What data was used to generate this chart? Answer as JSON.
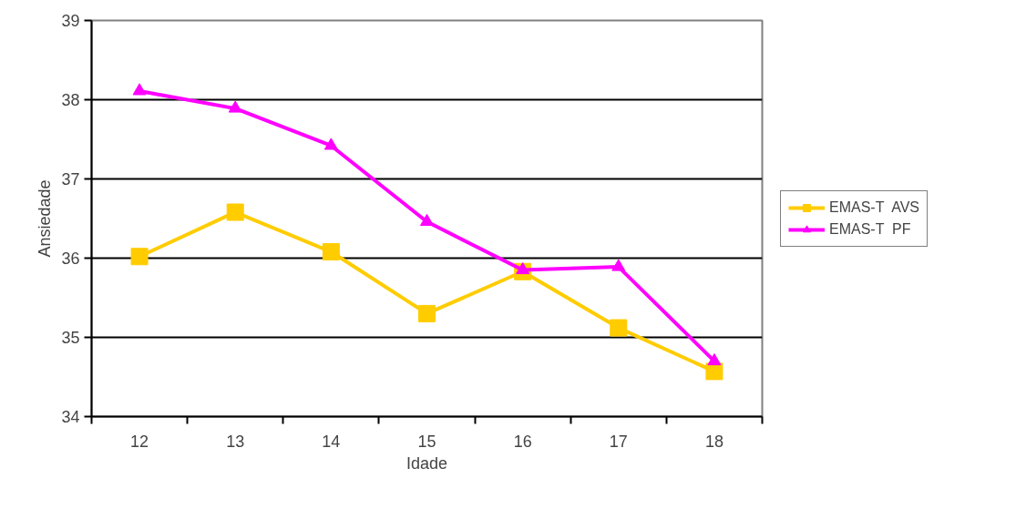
{
  "chart_data": {
    "type": "line",
    "xlabel": "Idade",
    "ylabel": "Ansiedade",
    "categories": [
      "12",
      "13",
      "14",
      "15",
      "16",
      "17",
      "18"
    ],
    "series": [
      {
        "name": "EMAS-T  AVS",
        "color": "#ffcc00",
        "marker": "square",
        "values": [
          36.02,
          36.58,
          36.08,
          35.3,
          35.83,
          35.12,
          34.57
        ]
      },
      {
        "name": "EMAS-T  PF",
        "color": "#ff00ff",
        "marker": "triangle",
        "values": [
          38.11,
          37.89,
          37.42,
          36.46,
          35.85,
          35.89,
          34.7
        ]
      }
    ],
    "ylim": [
      34,
      39
    ],
    "yticks": [
      34,
      35,
      36,
      37,
      38,
      39
    ],
    "grid": "y",
    "legend": "right",
    "line_style": "solid"
  }
}
